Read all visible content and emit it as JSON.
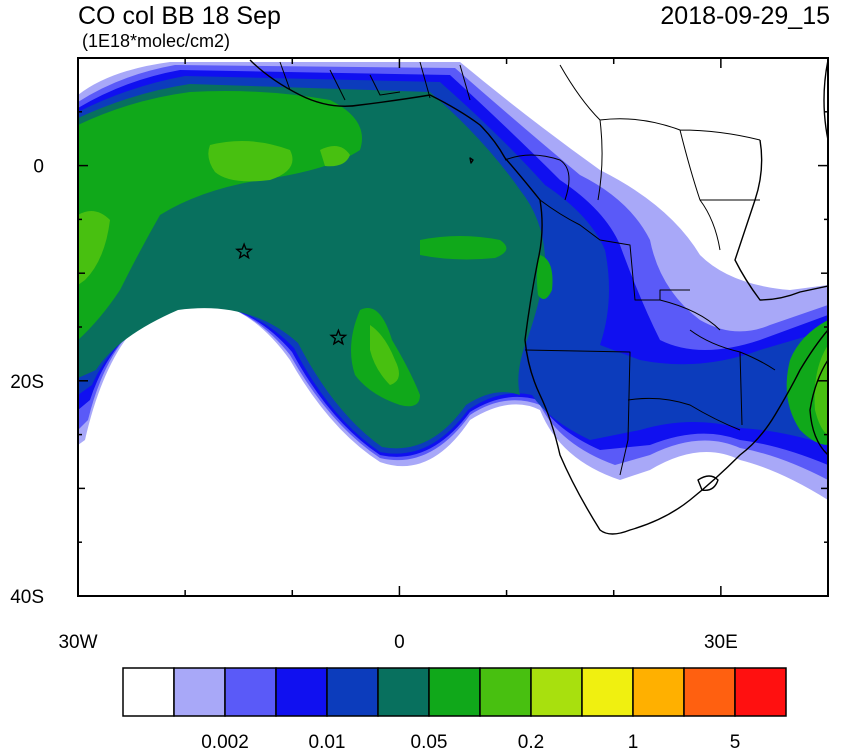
{
  "header": {
    "title": "CO col BB 18 Sep",
    "units": "(1E18*molec/cm2)",
    "datetime": "2018-09-29_15"
  },
  "map": {
    "lon_range": [
      -30,
      40
    ],
    "lat_range": [
      -40,
      10
    ],
    "x_tick_labels": [
      "30W",
      "0",
      "30E"
    ],
    "y_tick_labels": [
      "0",
      "20S",
      "40S"
    ],
    "markers": [
      {
        "name": "star",
        "lon": -14.5,
        "lat": -8
      },
      {
        "name": "star",
        "lon": -5.7,
        "lat": -16
      }
    ],
    "ocean_color": "#ffffff",
    "coastline_color": "#000000"
  },
  "colorbar": {
    "colors": [
      "#ffffff",
      "#a8a8f8",
      "#5a5af8",
      "#1010f0",
      "#0c3cbc",
      "#08705e",
      "#10a81a",
      "#48c010",
      "#a8e00e",
      "#f0f010",
      "#ffb000",
      "#ff6010",
      "#ff1010"
    ],
    "labels": [
      "0.002",
      "0.01",
      "0.05",
      "0.2",
      "1",
      "5"
    ]
  }
}
